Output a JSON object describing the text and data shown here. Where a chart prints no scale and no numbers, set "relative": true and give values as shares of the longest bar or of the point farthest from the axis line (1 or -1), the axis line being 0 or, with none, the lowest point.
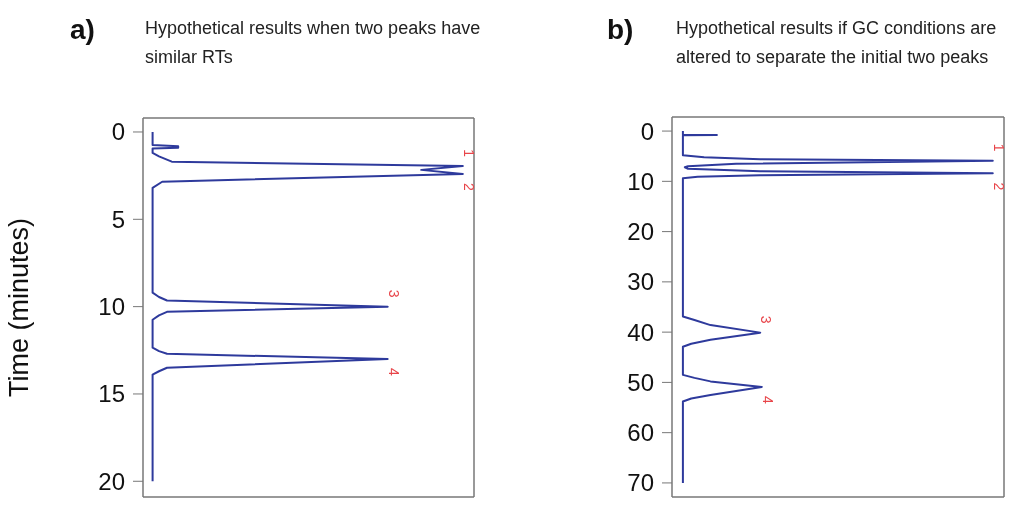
{
  "chart_data": [
    {
      "type": "line",
      "orientation": "horizontal",
      "relative": true,
      "title": "a)",
      "subtitle": "Hypothetical results when two peaks have similar RTs",
      "ylabel": "Time (minutes)",
      "ylim": [
        20.9,
        -0.8
      ],
      "yticks": [
        0,
        5,
        10,
        15,
        20
      ],
      "grid": false,
      "legend": false,
      "marker": "none",
      "line_style": "solid",
      "series": [
        {
          "color": "#2e3a9c",
          "x": [
            0,
            0.75,
            0.82,
            0.9,
            0.95,
            1.2,
            1.4,
            1.7,
            1.95,
            2.17,
            2.4,
            2.85,
            3.2,
            9.2,
            9.45,
            9.65,
            10,
            10.3,
            10.5,
            10.75,
            12.35,
            12.55,
            12.7,
            13,
            13.5,
            13.7,
            13.9,
            20
          ],
          "values": [
            0.03,
            0.03,
            0.11,
            0.11,
            0.03,
            0.03,
            0.05,
            0.09,
            1,
            0.87,
            1,
            0.06,
            0.03,
            0.03,
            0.05,
            0.075,
            0.765,
            0.075,
            0.05,
            0.03,
            0.03,
            0.05,
            0.075,
            0.765,
            0.075,
            0.05,
            0.03,
            0.03
          ]
        }
      ],
      "annotations": [
        {
          "text": "1",
          "x": 1,
          "y": 1.95
        },
        {
          "text": "2",
          "x": 1,
          "y": 2.4
        },
        {
          "text": "3",
          "x": 0.765,
          "y": 10
        },
        {
          "text": "4",
          "x": 0.765,
          "y": 13
        }
      ]
    },
    {
      "type": "line",
      "orientation": "horizontal",
      "relative": true,
      "title": "b)",
      "subtitle": "Hypothetical results if GC conditions are altered to separate the initial two peaks",
      "ylim": [
        72.8,
        -2.8
      ],
      "yticks": [
        0,
        10,
        20,
        30,
        40,
        50,
        60,
        70
      ],
      "grid": false,
      "legend": false,
      "marker": "none",
      "line_style": "solid",
      "series": [
        {
          "color": "#2e3a9c",
          "x": [
            0,
            0.75,
            0.8,
            0.85,
            4.8,
            5.2,
            5.6,
            5.9,
            6.5,
            7.0,
            7.2,
            7.5,
            8.0,
            8.4,
            8.8,
            9.1,
            9.4,
            36.9,
            37.6,
            38.6,
            40.1,
            41.5,
            42.3,
            42.9,
            48.5,
            49.1,
            49.8,
            50.9,
            52.5,
            53.2,
            53.8,
            70
          ],
          "values": [
            0.034,
            0.034,
            0.14,
            0.034,
            0.034,
            0.1,
            0.275,
            1,
            0.2,
            0.05,
            0.04,
            0.05,
            0.275,
            1,
            0.275,
            0.08,
            0.034,
            0.034,
            0.07,
            0.12,
            0.275,
            0.12,
            0.06,
            0.034,
            0.034,
            0.07,
            0.12,
            0.28,
            0.12,
            0.06,
            0.034,
            0.034
          ]
        }
      ],
      "annotations": [
        {
          "text": "1",
          "x": 1,
          "y": 5.9
        },
        {
          "text": "2",
          "x": 1,
          "y": 8.4
        },
        {
          "text": "3",
          "x": 0.275,
          "y": 40.1
        },
        {
          "text": "4",
          "x": 0.28,
          "y": 50.9
        }
      ]
    }
  ]
}
